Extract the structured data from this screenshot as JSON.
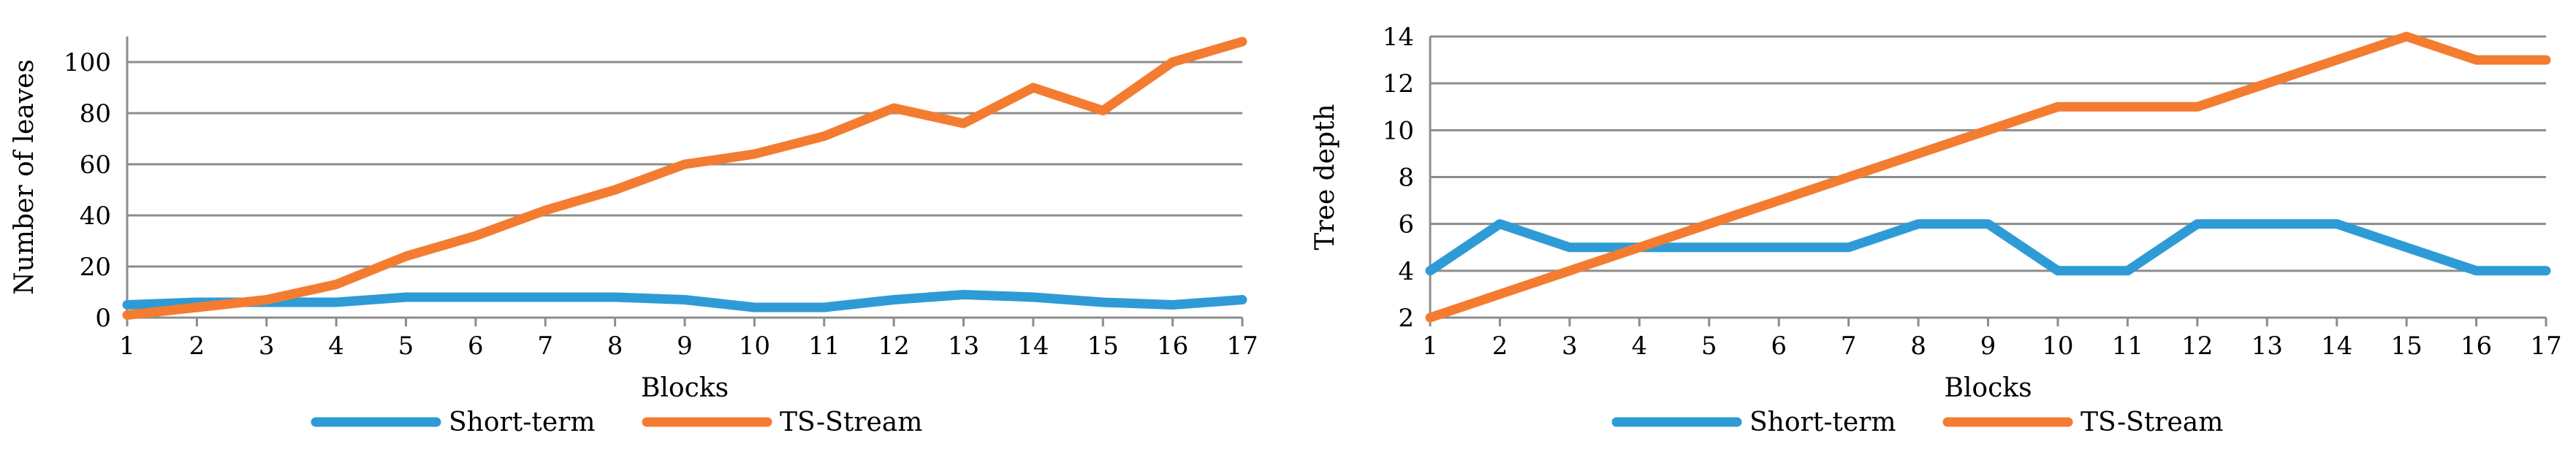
{
  "chart_data": [
    {
      "type": "line",
      "title": "",
      "xlabel": "Blocks",
      "ylabel": "Number of leaves",
      "categories": [
        "1",
        "2",
        "3",
        "4",
        "5",
        "6",
        "7",
        "8",
        "9",
        "10",
        "11",
        "12",
        "13",
        "14",
        "15",
        "16",
        "17"
      ],
      "ylim": [
        0,
        110
      ],
      "yticks": [
        0,
        20,
        40,
        60,
        80,
        100
      ],
      "grid": true,
      "legend_position": "bottom",
      "series": [
        {
          "name": "Short-term",
          "color": "#2E9BD6",
          "values": [
            5,
            6,
            6,
            6,
            8,
            8,
            8,
            8,
            7,
            4,
            4,
            7,
            9,
            8,
            6,
            5,
            7
          ]
        },
        {
          "name": "TS-Stream",
          "color": "#F47C30",
          "values": [
            1,
            4,
            7,
            13,
            24,
            32,
            42,
            50,
            60,
            64,
            71,
            82,
            76,
            90,
            81,
            100,
            108
          ]
        }
      ]
    },
    {
      "type": "line",
      "title": "",
      "xlabel": "Blocks",
      "ylabel": "Tree depth",
      "categories": [
        "1",
        "2",
        "3",
        "4",
        "5",
        "6",
        "7",
        "8",
        "9",
        "10",
        "11",
        "12",
        "13",
        "14",
        "15",
        "16",
        "17"
      ],
      "ylim": [
        2,
        14
      ],
      "yticks": [
        2,
        4,
        6,
        8,
        10,
        12,
        14
      ],
      "grid": true,
      "legend_position": "bottom",
      "series": [
        {
          "name": "Short-term",
          "color": "#2E9BD6",
          "values": [
            4,
            6,
            5,
            5,
            5,
            5,
            5,
            6,
            6,
            4,
            4,
            6,
            6,
            6,
            5,
            4,
            4
          ]
        },
        {
          "name": "TS-Stream",
          "color": "#F47C30",
          "values": [
            2,
            3,
            4,
            5,
            6,
            7,
            8,
            9,
            10,
            11,
            11,
            11,
            12,
            13,
            14,
            13,
            13
          ]
        }
      ]
    }
  ]
}
